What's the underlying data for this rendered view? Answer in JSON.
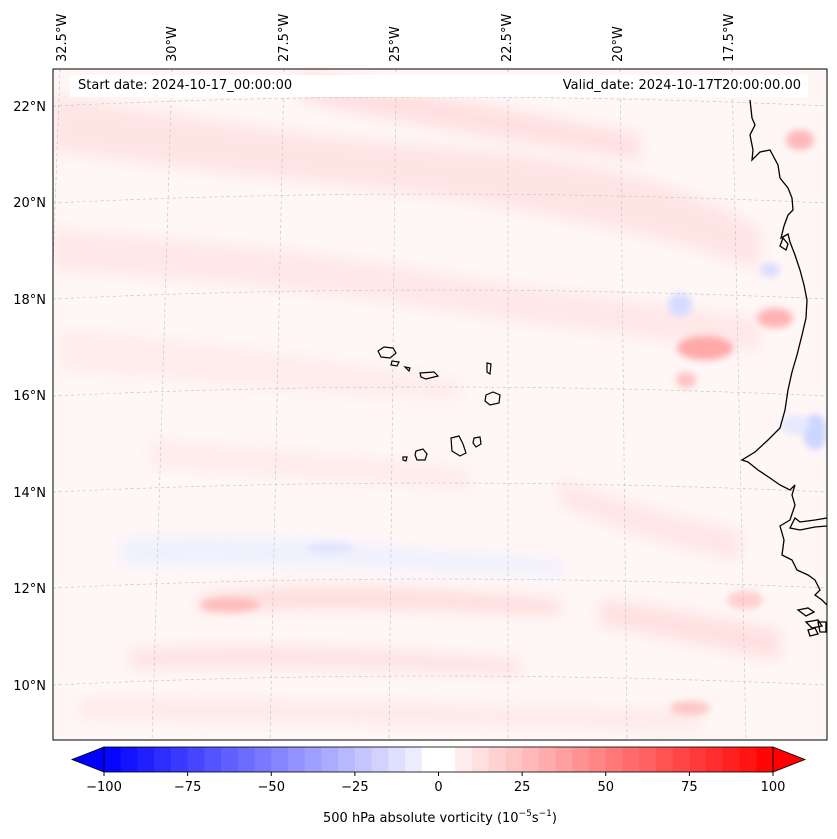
{
  "map": {
    "start_date_label": "Start date: 2024-10-17_00:00:00",
    "valid_date_label": "Valid_date: 2024-10-17T20:00:00.00",
    "longitude_labels": [
      "32.5°W",
      "30°W",
      "27.5°W",
      "25°W",
      "22.5°W",
      "20°W",
      "17.5°W"
    ],
    "latitude_labels": [
      "22°N",
      "20°N",
      "18°N",
      "16°N",
      "14°N",
      "12°N",
      "10°N"
    ],
    "features": [
      "Cape Verde islands",
      "West African coastline"
    ],
    "colors": {
      "land_outline": "#000000",
      "background_field": "#fff5f5",
      "positive_anomaly": "#ff9999",
      "negative_anomaly": "#ccd4ff"
    }
  },
  "colorbar": {
    "title": "500 hPa absolute vorticity",
    "units_base": "(10",
    "units_exp1": "−5",
    "units_mid": "s",
    "units_exp2": "−1",
    "units_close": ")",
    "tick_labels": [
      "−100",
      "−75",
      "−50",
      "−25",
      "0",
      "25",
      "50",
      "75",
      "100"
    ],
    "min": -100,
    "max": 100,
    "step": 5
  }
}
